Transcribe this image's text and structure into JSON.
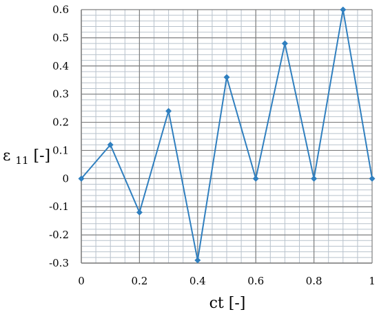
{
  "chart_data": {
    "type": "line",
    "xlabel": "ct [-]",
    "ylabel": {
      "base": "ε",
      "subscript": "11",
      "suffix": "[-]"
    },
    "xlim": [
      0,
      1
    ],
    "ylim": [
      -0.3,
      0.6
    ],
    "x_ticks": [
      "0",
      "0.2",
      "0.4",
      "0.6",
      "0.8",
      "1"
    ],
    "x_tick_values": [
      0,
      0.2,
      0.4,
      0.6,
      0.8,
      1
    ],
    "y_ticks": [
      "0.6",
      "0.5",
      "0.4",
      "0.3",
      "0.2",
      "0.1",
      "0",
      "-0.1",
      "-0.2",
      "-0.3"
    ],
    "y_tick_values": [
      0.6,
      0.5,
      0.4,
      0.3,
      0.2,
      0.1,
      0,
      -0.1,
      -0.2,
      -0.3
    ],
    "grid": true,
    "marker": "diamond",
    "colors": {
      "series": "#2f7fbf",
      "major_grid": "#7f7f7f",
      "minor_grid": "#b8c2cc"
    },
    "series": [
      {
        "x": [
          0,
          0.1,
          0.2,
          0.3,
          0.4,
          0.5,
          0.6,
          0.7,
          0.8,
          0.9,
          1.0
        ],
        "y": [
          0,
          0.12,
          -0.12,
          0.24,
          -0.29,
          0.36,
          0,
          0.48,
          0,
          0.6,
          0
        ]
      }
    ]
  }
}
